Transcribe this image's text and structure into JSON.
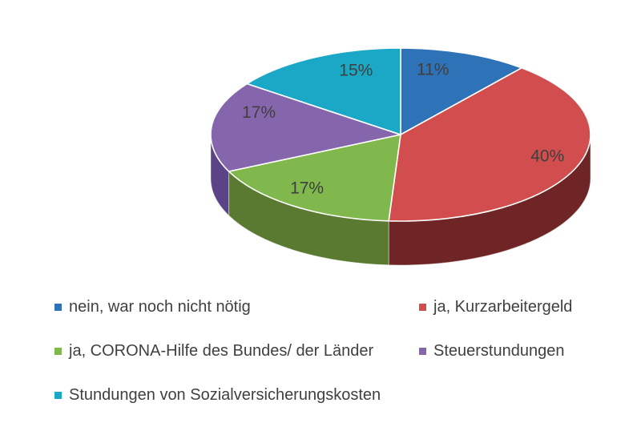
{
  "figure": {
    "background": "#FFFFFF"
  },
  "chart_data": {
    "type": "pie",
    "style": "3d",
    "start_angle_deg": 0,
    "direction": "clockwise",
    "legend_position": "bottom",
    "legend_columns": 2,
    "percent_label_color": "#3F3F3F",
    "legend_text_color": "#404040",
    "slices": [
      {
        "label": "nein, war noch nicht nötig",
        "value": 11,
        "pct_label": "11%",
        "color": "#2E72B8",
        "side_color": "#1E4C7E"
      },
      {
        "label": "ja, Kurzarbeitergeld",
        "value": 40,
        "pct_label": "40%",
        "color": "#D24E4E",
        "side_color": "#6F2525"
      },
      {
        "label": "ja, CORONA-Hilfe des Bundes/ der Länder",
        "value": 17,
        "pct_label": "17%",
        "color": "#80B84D",
        "side_color": "#5A7A32"
      },
      {
        "label": "Steuerstundungen",
        "value": 17,
        "pct_label": "17%",
        "color": "#8565AC",
        "side_color": "#5B4387"
      },
      {
        "label": "Stundungen von Sozialversicherungskosten",
        "value": 15,
        "pct_label": "15%",
        "color": "#1BA7C6",
        "side_color": "#11708A"
      }
    ]
  }
}
